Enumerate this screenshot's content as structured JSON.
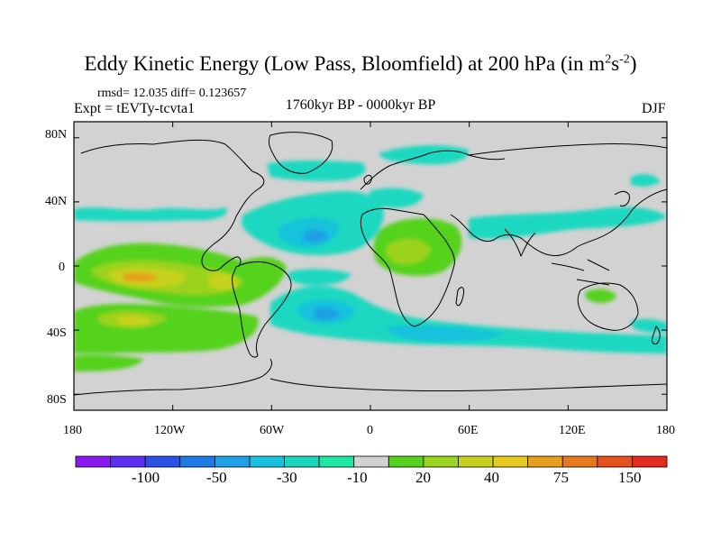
{
  "title": {
    "main": "Eddy Kinetic Energy (Low Pass, Bloomfield) at 200 hPa (in m",
    "sup1": "2",
    "mid": "s",
    "sup2": "-2",
    "end": ")"
  },
  "stats": "rmsd= 12.035 diff= 0.123657",
  "experiment": "Expt = tEVTy-tcvta1",
  "period": "1760kyr BP - 0000kyr BP",
  "season": "DJF",
  "lat_labels": [
    "80N",
    "40N",
    "0",
    "40S",
    "80S"
  ],
  "lon_labels": [
    "180",
    "120W",
    "60W",
    "0",
    "60E",
    "120E",
    "180"
  ],
  "colorbar": {
    "colors": [
      "#8a19f0",
      "#5a2ff0",
      "#2a52e6",
      "#1f7ae6",
      "#1ea0e6",
      "#19c2dc",
      "#1ad8c0",
      "#1fe6a4",
      "#d2d2d2",
      "#55d21e",
      "#9bd21e",
      "#c8d21e",
      "#e6c81e",
      "#e6a01e",
      "#e6781e",
      "#e6501e",
      "#e62a1e"
    ],
    "labels": [
      "-100",
      "-50",
      "-30",
      "-10",
      "20",
      "40",
      "75",
      "150"
    ]
  },
  "palette": {
    "land_bg": "#d2d2d2",
    "cyan": "#1ad8c0",
    "teal": "#19c2dc",
    "blue": "#1ea0e6",
    "green": "#55d21e",
    "lime": "#9bd21e",
    "yellow": "#c8d21e",
    "orange": "#e6a01e"
  }
}
